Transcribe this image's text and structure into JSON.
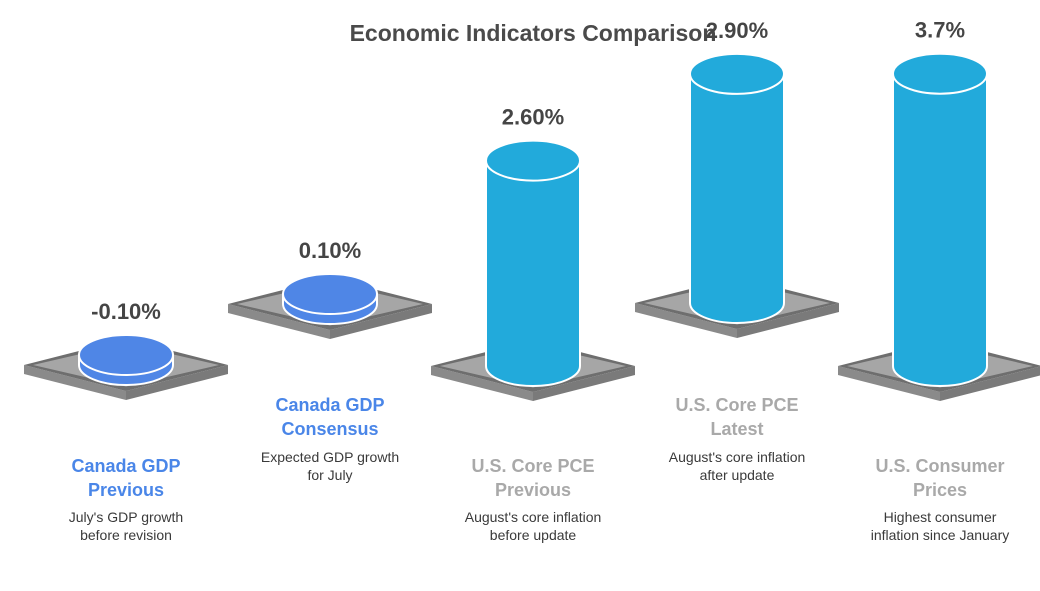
{
  "chart_data": {
    "type": "bar",
    "title": "Economic Indicators Comparison",
    "categories": [
      "Canada GDP Previous",
      "Canada GDP Consensus",
      "U.S. Core PCE Previous",
      "U.S. Core PCE Latest",
      "U.S. Consumer Prices"
    ],
    "category_lines": [
      [
        "Canada GDP",
        "Previous"
      ],
      [
        "Canada GDP",
        "Consensus"
      ],
      [
        "U.S. Core PCE",
        "Previous"
      ],
      [
        "U.S. Core PCE",
        "Latest"
      ],
      [
        "U.S. Consumer",
        "Prices"
      ]
    ],
    "values": [
      -0.1,
      0.1,
      2.6,
      2.9,
      3.7
    ],
    "value_labels": [
      "-0.10%",
      "0.10%",
      "2.60%",
      "2.90%",
      "3.7%"
    ],
    "descriptions": [
      [
        "July's GDP growth",
        "before revision"
      ],
      [
        "Expected GDP growth",
        "for July"
      ],
      [
        "August's core inflation",
        "before update"
      ],
      [
        "August's core inflation",
        "after update"
      ],
      [
        "Highest consumer",
        "inflation since January"
      ]
    ],
    "colors": {
      "canada_bar": "#4f86e6",
      "us_bar": "#22aadb",
      "canada_label": "#4a86e8",
      "us_label": "#a9a9a9",
      "platform": "#a6a6a6",
      "platform_dark": "#6e6e6e",
      "title": "#4a4a4a"
    },
    "grid": false,
    "legend": "none"
  }
}
